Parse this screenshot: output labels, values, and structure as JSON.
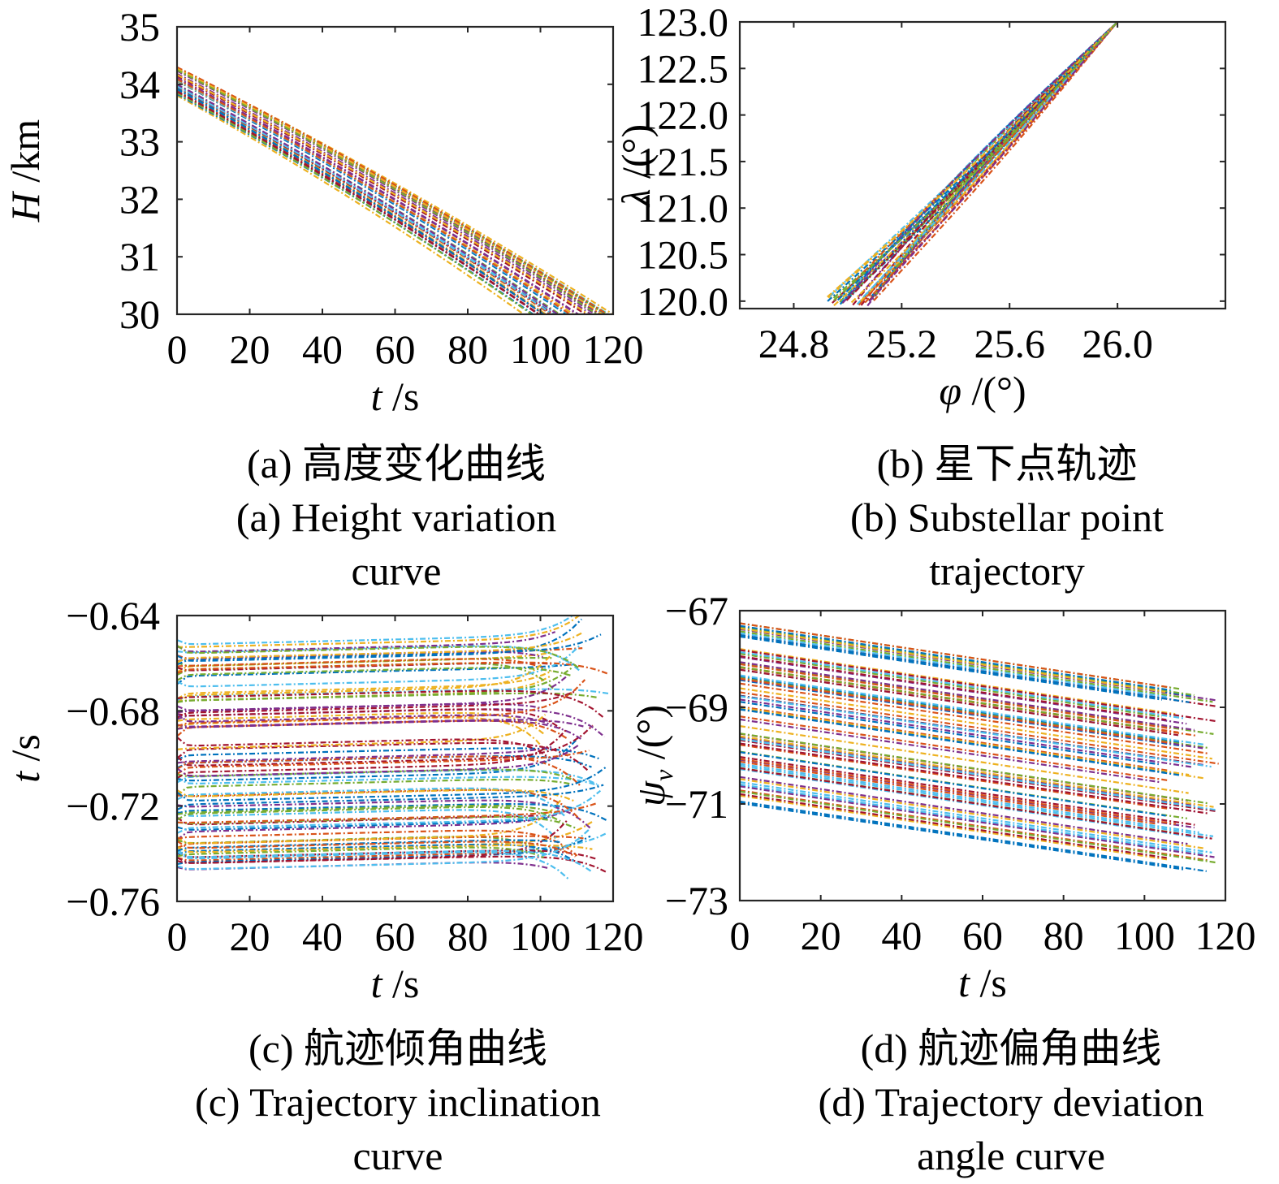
{
  "palette": [
    "#0072BD",
    "#D95319",
    "#EDB120",
    "#7E2F8E",
    "#77AC30",
    "#4DBEEE",
    "#A2142F"
  ],
  "chart_data": [
    {
      "id": "a",
      "type": "line",
      "title": "",
      "xlabel_var": "t",
      "xlabel_unit": " /s",
      "ylabel_var": "H",
      "ylabel_unit": " /km",
      "xlim": [
        0,
        120
      ],
      "ylim": [
        30,
        35
      ],
      "xticks": [
        0,
        20,
        40,
        60,
        80,
        100,
        120
      ],
      "xtick_labels": [
        "0",
        "20",
        "40",
        "60",
        "80",
        "100",
        "120"
      ],
      "yticks": [
        30,
        31,
        32,
        33,
        34,
        35
      ],
      "ytick_labels": [
        "30",
        "31",
        "32",
        "33",
        "34",
        "35"
      ],
      "grid": false,
      "line_style": "dash-dot",
      "series_count": 40,
      "approx": "stylized approximation of many Monte Carlo runs, not measured data",
      "series_model": {
        "start_y_range": [
          33.8,
          34.3
        ],
        "end_y": 30,
        "end_x_range": [
          95,
          120
        ],
        "curvature": 0.12
      }
    },
    {
      "id": "b",
      "type": "line",
      "title": "",
      "xlabel_var": "φ",
      "xlabel_unit": " /(°)",
      "ylabel_var": "λ",
      "ylabel_unit": " /(°)",
      "xlim": [
        24.6,
        26.4
      ],
      "ylim": [
        119.92,
        123.0
      ],
      "xticks": [
        24.8,
        25.2,
        25.6,
        26.0
      ],
      "xtick_labels": [
        "24.8",
        "25.2",
        "25.6",
        "26.0"
      ],
      "yticks": [
        120.0,
        120.5,
        121.0,
        121.5,
        122.0,
        122.5,
        123.0
      ],
      "ytick_labels": [
        "120.0",
        "120.5",
        "121.0",
        "121.5",
        "122.0",
        "122.5",
        "123.0"
      ],
      "grid": false,
      "line_style": "dash-dot",
      "series_count": 40,
      "approx": "stylized approximation of many Monte Carlo runs, not measured data",
      "series_model": {
        "end_point": [
          26.0,
          123.0
        ],
        "start_x_range": [
          24.92,
          25.1
        ],
        "start_y_range": [
          119.95,
          120.06
        ]
      }
    },
    {
      "id": "c",
      "type": "line",
      "title": "",
      "xlabel_var": "t",
      "xlabel_unit": " /s",
      "ylabel_var": "t",
      "ylabel_unit": " /s",
      "xlim": [
        0,
        120
      ],
      "ylim": [
        -0.76,
        -0.64
      ],
      "xticks": [
        0,
        20,
        40,
        60,
        80,
        100,
        120
      ],
      "xtick_labels": [
        "0",
        "20",
        "40",
        "60",
        "80",
        "100",
        "120"
      ],
      "yticks": [
        -0.76,
        -0.72,
        -0.68,
        -0.64
      ],
      "ytick_labels": [
        "−0.76",
        "−0.72",
        "−0.68",
        "−0.64"
      ],
      "grid": false,
      "line_style": "dash-dot",
      "series_count": 90,
      "approx": "stylized approximation of many Monte Carlo runs, not measured data",
      "series_model": {
        "level_range": [
          -0.747,
          -0.651
        ],
        "end_x_range": [
          100,
          119
        ],
        "drift": 0.004
      }
    },
    {
      "id": "d",
      "type": "line",
      "title": "",
      "xlabel_var": "t",
      "xlabel_unit": " /s",
      "ylabel_var": "ψ",
      "ylabel_sub": "v",
      "ylabel_unit": " /(°)",
      "xlim": [
        0,
        120
      ],
      "ylim": [
        -73,
        -67
      ],
      "xticks": [
        0,
        20,
        40,
        60,
        80,
        100,
        120
      ],
      "xtick_labels": [
        "0",
        "20",
        "40",
        "60",
        "80",
        "100",
        "120"
      ],
      "yticks": [
        -73,
        -71,
        -69,
        -67
      ],
      "ytick_labels": [
        "−73",
        "−71",
        "−69",
        "−67"
      ],
      "grid": false,
      "line_style": "dash-dot",
      "series_count": 90,
      "approx": "stylized approximation of many Monte Carlo runs, not measured data",
      "series_model": {
        "start_y_range": [
          -71.0,
          -67.2
        ],
        "slope_per_s": -0.0125,
        "end_x_range": [
          103,
          119
        ]
      }
    }
  ],
  "captions": {
    "a": {
      "cn": "(a) 高度变化曲线",
      "en1": "(a) Height variation",
      "en2": "curve"
    },
    "b": {
      "cn": "(b) 星下点轨迹",
      "en1": "(b) Substellar point",
      "en2": "trajectory"
    },
    "c": {
      "cn": "(c) 航迹倾角曲线",
      "en1": "(c) Trajectory inclination",
      "en2": "curve"
    },
    "d": {
      "cn": "(d) 航迹偏角曲线",
      "en1": "(d) Trajectory deviation",
      "en2": "angle curve"
    }
  }
}
